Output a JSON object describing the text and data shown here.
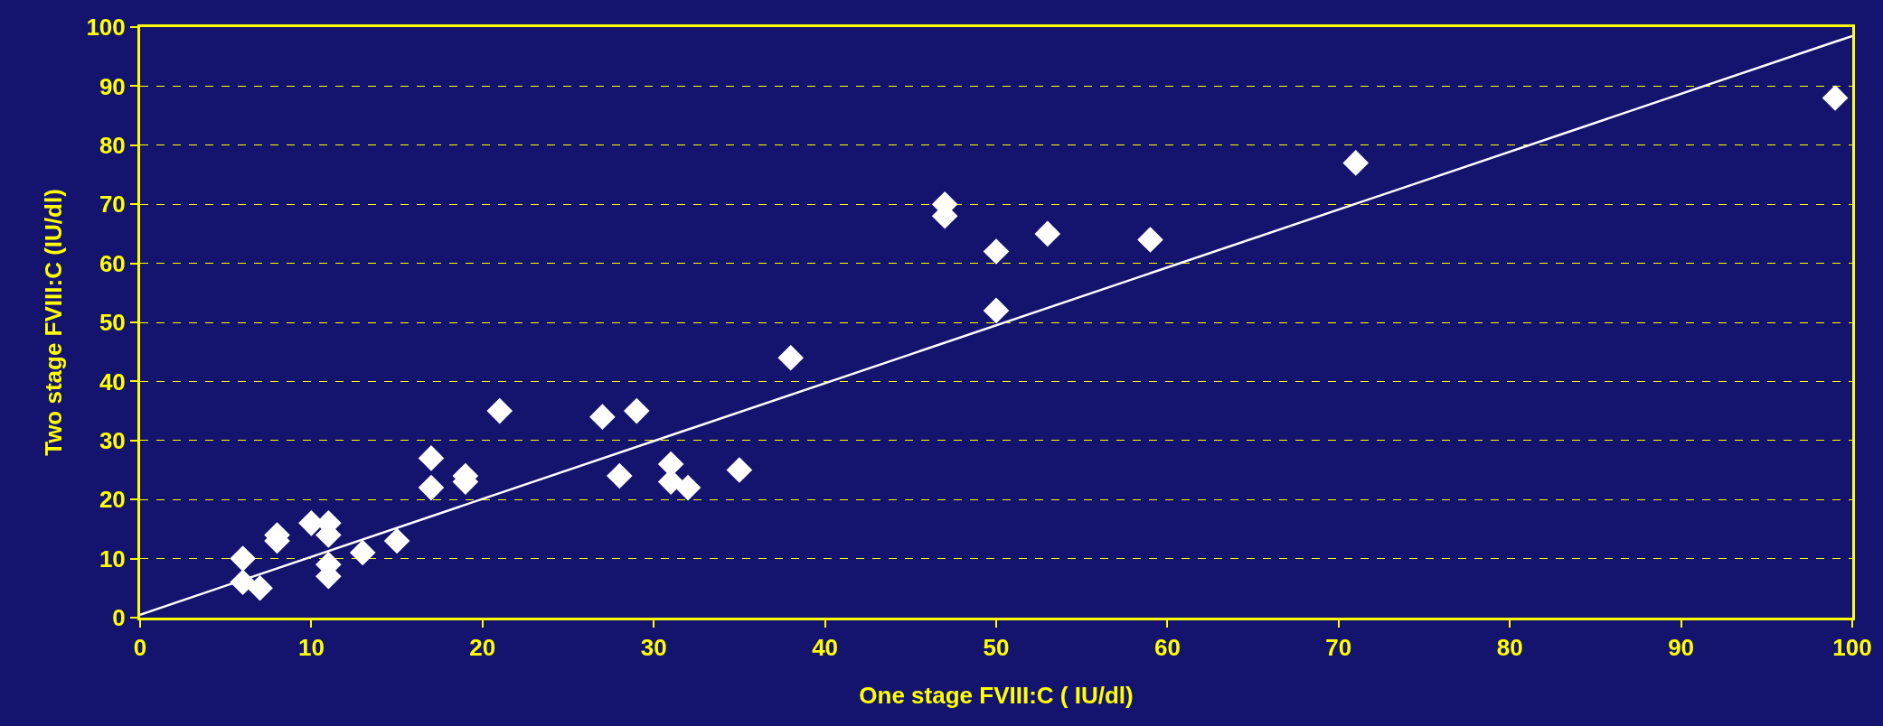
{
  "chart_data": {
    "type": "scatter",
    "xlabel": "One stage FVIII:C ( IU/dl)",
    "ylabel": "Two stage FVIII:C (IU/dl)",
    "xlim": [
      0,
      100
    ],
    "xticks": [
      0,
      10,
      20,
      30,
      40,
      50,
      60,
      70,
      80,
      90,
      100
    ],
    "ylim": [
      0,
      100
    ],
    "yticks": [
      0,
      10,
      20,
      30,
      40,
      50,
      60,
      70,
      80,
      90,
      100
    ],
    "grid": "y",
    "series": [
      {
        "marker": "diamond",
        "color": "#ffffff",
        "x": [
          6,
          6,
          7,
          8,
          8,
          10,
          11,
          11,
          11,
          11,
          13,
          15,
          17,
          17,
          19,
          19,
          21,
          27,
          28,
          29,
          31,
          31,
          32,
          35,
          38,
          47,
          47,
          50,
          50,
          53,
          59,
          71,
          99
        ],
        "values": [
          10,
          6,
          5,
          14,
          13,
          16,
          16,
          14,
          9,
          7,
          11,
          13,
          27,
          22,
          24,
          23,
          35,
          34,
          24,
          35,
          26,
          23,
          22,
          25,
          44,
          70,
          68,
          62,
          52,
          65,
          64,
          77,
          88
        ]
      },
      {
        "type": "line",
        "marker": "none",
        "line_style": "solid",
        "color": "#ffffff",
        "x": [
          0,
          100
        ],
        "values": [
          0.5,
          98.5
        ]
      }
    ]
  }
}
